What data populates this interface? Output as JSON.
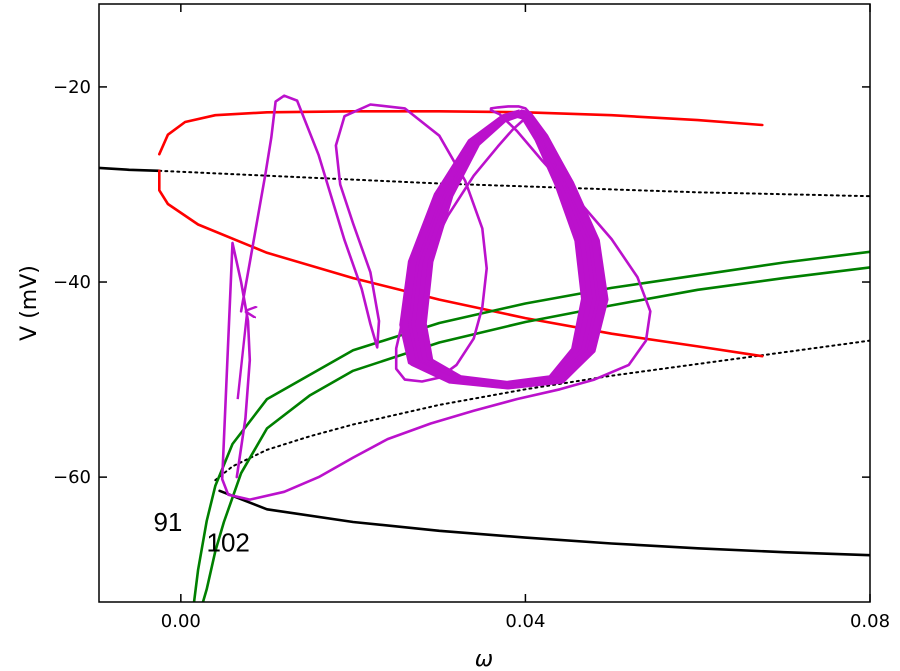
{
  "chart_data": {
    "type": "line",
    "xlabel": "ω",
    "ylabel": "V (mV)",
    "xlim": [
      -0.0095,
      0.08
    ],
    "ylim": [
      -72.8,
      -11.5
    ],
    "xticks": [
      0.0,
      0.04,
      0.08
    ],
    "xtick_labels": [
      "0.00",
      "0.04",
      "0.08"
    ],
    "yticks": [
      -20,
      -40,
      -60
    ],
    "ytick_labels": [
      "−20",
      "−40",
      "−60"
    ],
    "grid": false,
    "legend": "none",
    "colors": {
      "stable_rest": "#000000",
      "unstable": "#000000",
      "periodic": "#ff0000",
      "nullcline": "#008000",
      "trajectory": "#bb11cc"
    },
    "annotations": [
      {
        "text": "91",
        "x": -0.0015,
        "y": -65.5
      },
      {
        "text": "102",
        "x": 0.0055,
        "y": -67.6
      }
    ],
    "series": [
      {
        "role": "stable-upper-branch",
        "style": "solid",
        "x": [
          -0.0095,
          -0.006,
          -0.0025
        ],
        "y": [
          -28.3,
          -28.5,
          -28.6
        ]
      },
      {
        "role": "unstable-middle-branch",
        "style": "dotted",
        "x": [
          -0.0025,
          0.01,
          0.02,
          0.03,
          0.04,
          0.05,
          0.06,
          0.07,
          0.08
        ],
        "y": [
          -28.6,
          -29.1,
          -29.5,
          -29.9,
          -30.2,
          -30.5,
          -30.8,
          -31.0,
          -31.2
        ]
      },
      {
        "role": "unstable-lower-branch",
        "style": "dotted",
        "x": [
          0.004,
          0.006,
          0.01,
          0.015,
          0.02,
          0.03,
          0.04,
          0.05,
          0.06,
          0.07,
          0.08
        ],
        "y": [
          -60.3,
          -58.9,
          -57.2,
          -55.8,
          -54.6,
          -52.6,
          -51.0,
          -49.6,
          -48.4,
          -47.2,
          -46.0
        ]
      },
      {
        "role": "stable-lower-branch",
        "style": "solid",
        "x": [
          0.0045,
          0.01,
          0.02,
          0.03,
          0.04,
          0.05,
          0.06,
          0.07,
          0.08
        ],
        "y": [
          -61.4,
          -63.3,
          -64.6,
          -65.5,
          -66.2,
          -66.8,
          -67.3,
          -67.7,
          -68.0
        ]
      },
      {
        "role": "periodic-max",
        "style": "solid",
        "x": [
          0.0675,
          0.06,
          0.05,
          0.04,
          0.03,
          0.02,
          0.01,
          0.004,
          0.0005,
          -0.0015,
          -0.0025
        ],
        "y": [
          -23.9,
          -23.4,
          -22.9,
          -22.6,
          -22.5,
          -22.5,
          -22.6,
          -22.9,
          -23.6,
          -24.9,
          -26.9
        ]
      },
      {
        "role": "periodic-min",
        "style": "solid",
        "x": [
          -0.0025,
          -0.0025,
          -0.0015,
          0.002,
          0.01,
          0.02,
          0.03,
          0.04,
          0.05,
          0.06,
          0.0675
        ],
        "y": [
          -28.6,
          -30.6,
          -32.0,
          -34.1,
          -37.0,
          -39.6,
          -41.8,
          -43.7,
          -45.3,
          -46.6,
          -47.6
        ]
      },
      {
        "role": "nullcline-91",
        "style": "solid",
        "x": [
          0.0015,
          0.002,
          0.003,
          0.004,
          0.006,
          0.01,
          0.02,
          0.03,
          0.04,
          0.05,
          0.06,
          0.07,
          0.08
        ],
        "y": [
          -73,
          -69.5,
          -64.5,
          -60.9,
          -56.6,
          -52.0,
          -47.0,
          -44.2,
          -42.2,
          -40.6,
          -39.3,
          -38.0,
          -36.9
        ]
      },
      {
        "role": "nullcline-102",
        "style": "solid",
        "x": [
          0.0025,
          0.003,
          0.004,
          0.005,
          0.007,
          0.01,
          0.015,
          0.02,
          0.03,
          0.04,
          0.05,
          0.06,
          0.07,
          0.08
        ],
        "y": [
          -73,
          -71.5,
          -67.6,
          -64.6,
          -59.6,
          -55.0,
          -51.6,
          -49.1,
          -46.2,
          -44.1,
          -42.4,
          -40.8,
          -39.6,
          -38.5
        ]
      },
      {
        "role": "trajectory",
        "style": "solid",
        "x": [
          0.0065,
          0.0075,
          0.008,
          0.0078,
          0.007,
          0.006,
          0.0048,
          0.0055,
          0.008,
          0.012,
          0.016,
          0.02,
          0.024,
          0.029,
          0.034,
          0.039,
          0.044,
          0.048,
          0.052,
          0.054,
          0.0545,
          0.053,
          0.05,
          0.046,
          0.042,
          0.039,
          0.037,
          0.036,
          0.036,
          0.0368,
          0.038,
          0.0392,
          0.04,
          0.0404,
          0.04,
          0.0385,
          0.0368,
          0.034,
          0.031,
          0.028,
          0.026,
          0.025,
          0.025,
          0.026,
          0.028,
          0.03,
          0.032,
          0.034,
          0.035,
          0.0355,
          0.035,
          0.033,
          0.03,
          0.026,
          0.022,
          0.019,
          0.018,
          0.0185,
          0.02,
          0.022,
          0.023,
          0.0228,
          0.022,
          0.021,
          0.019,
          0.016,
          0.0135,
          0.012,
          0.011,
          0.0105,
          0.0098,
          0.009,
          0.008,
          0.007
        ],
        "y": [
          -60.0,
          -54.0,
          -48.0,
          -44.0,
          -40.0,
          -36.0,
          -60.2,
          -61.8,
          -62.3,
          -61.5,
          -60.0,
          -58.0,
          -56.1,
          -54.5,
          -53.2,
          -52.0,
          -51.0,
          -50.0,
          -48.5,
          -46.0,
          -43.0,
          -39.5,
          -35.6,
          -31.5,
          -27.6,
          -24.5,
          -22.8,
          -22.4,
          -22.2,
          -22.1,
          -22.0,
          -22.0,
          -22.2,
          -22.6,
          -23.2,
          -24.4,
          -26.1,
          -29.1,
          -33.2,
          -38.5,
          -43.0,
          -46.8,
          -48.9,
          -50.0,
          -50.2,
          -49.8,
          -48.5,
          -45.8,
          -42.6,
          -38.6,
          -34.5,
          -29.6,
          -25.0,
          -22.2,
          -21.8,
          -23.0,
          -26.0,
          -30.0,
          -34.0,
          -39.0,
          -44.0,
          -46.7,
          -44.3,
          -40.7,
          -35.7,
          -27.0,
          -21.4,
          -20.9,
          -21.5,
          -25.2,
          -29.0,
          -33.0,
          -38.0,
          -43.0
        ]
      },
      {
        "role": "attractor-limit-cycle",
        "style": "solid",
        "x": [
          0.0395,
          0.0375,
          0.0335,
          0.0295,
          0.0265,
          0.0255,
          0.0265,
          0.031,
          0.038,
          0.0445,
          0.048,
          0.0495,
          0.0485,
          0.0455,
          0.0425,
          0.0405,
          0.0395
        ],
        "y": [
          -22.6,
          -23.1,
          -25.6,
          -31.0,
          -37.9,
          -44.4,
          -48.3,
          -50.1,
          -50.7,
          -50.1,
          -47.1,
          -41.8,
          -35.7,
          -29.8,
          -25.1,
          -22.8,
          -22.6
        ]
      }
    ]
  }
}
